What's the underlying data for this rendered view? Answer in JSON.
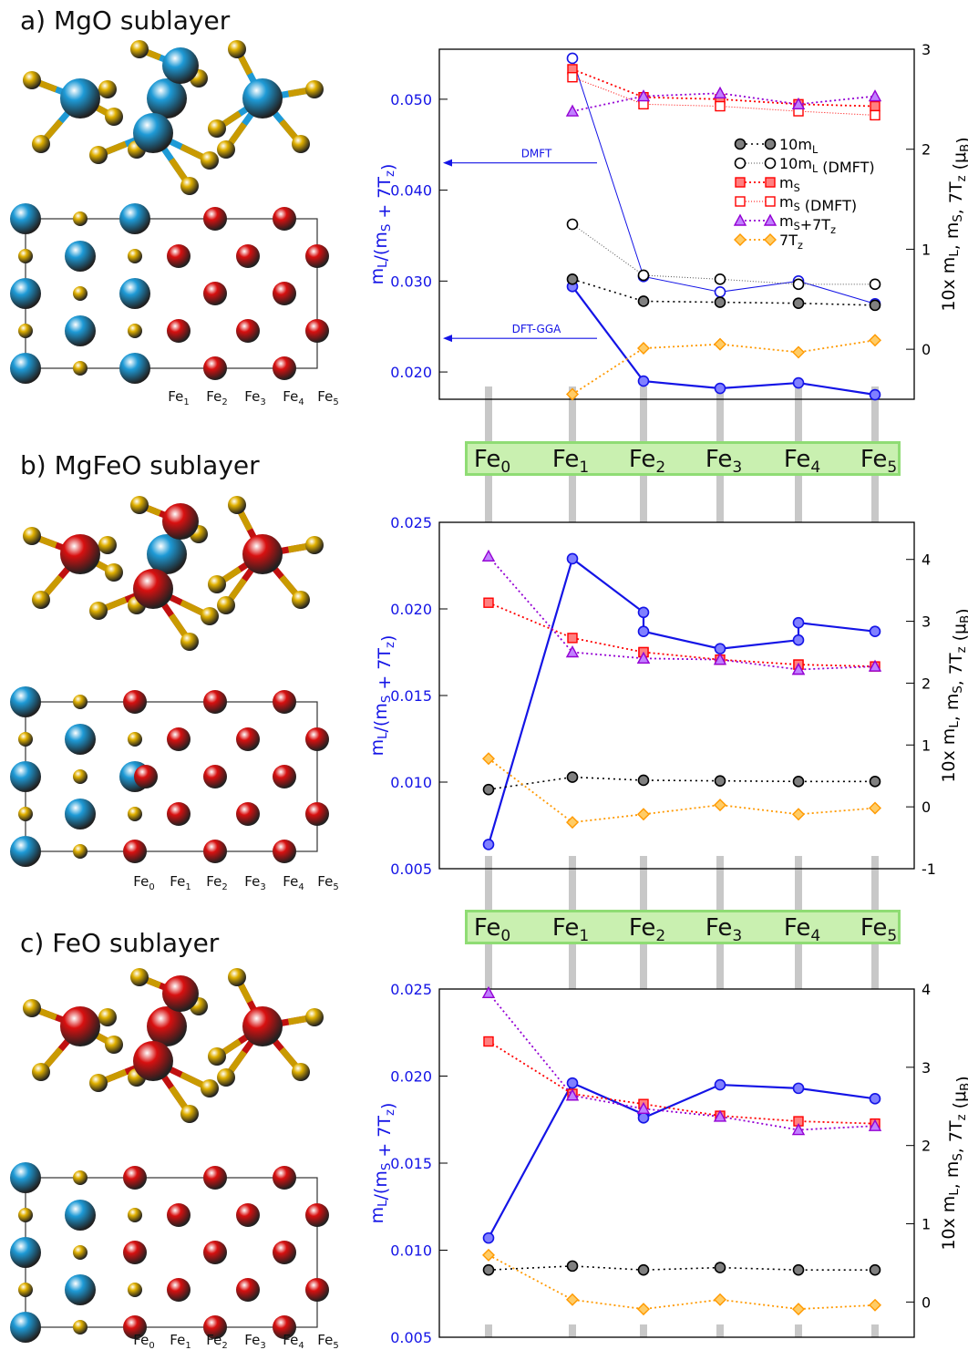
{
  "panels": [
    {
      "label": "a) MgO sublayer"
    },
    {
      "label": "b) MgFeO sublayer"
    },
    {
      "label": "c) FeO sublayer"
    }
  ],
  "structure_labels": {
    "a": [
      "Fe1",
      "Fe2",
      "Fe3",
      "Fe4",
      "Fe5"
    ],
    "b": [
      "Fe0",
      "Fe1",
      "Fe2",
      "Fe3",
      "Fe4",
      "Fe5"
    ],
    "c": [
      "Fe0",
      "Fe1",
      "Fe2",
      "Fe3",
      "Fe4",
      "Fe5"
    ]
  },
  "banners": [
    {
      "labels": [
        "Fe0",
        "Fe1",
        "Fe2",
        "Fe3",
        "Fe4",
        "Fe5"
      ]
    },
    {
      "labels": [
        "Fe0",
        "Fe1",
        "Fe2",
        "Fe3",
        "Fe4",
        "Fe5"
      ]
    }
  ],
  "colors": {
    "ratio": "#1414e6",
    "ratio_fill": "#8080ff",
    "mL": "#000000",
    "mL_fill": "#808080",
    "mS": "#ff0000",
    "mS_fill": "#ff8080",
    "mS7Tz": "#9400d3",
    "mS7Tz_fill": "#c080ff",
    "Tz": "#ff9900",
    "Tz_fill": "#ffcc66",
    "atom_O": "#e0b000",
    "atom_Mg": "#1e9ad6",
    "atom_Fe": "#d81010",
    "banner": "#c9f0b0"
  },
  "chart_data": [
    {
      "type": "line",
      "panel": "a",
      "ylabel_left": "mL/(mS + 7Tz)",
      "ylabel_right": "10x mL, mS, 7Tz (μB)",
      "ylim_left": [
        0.017,
        0.0555
      ],
      "ylim_right": [
        -0.5,
        3.0
      ],
      "yticks_left": [
        "0.020",
        "0.030",
        "0.040",
        "0.050"
      ],
      "yticks_left_values": [
        0.02,
        0.03,
        0.04,
        0.05
      ],
      "yticks_right": [
        "0",
        "1",
        "2",
        "3"
      ],
      "yticks_right_values": [
        0,
        1,
        2,
        3
      ],
      "x_positions": [
        "Fe1",
        "Fe2",
        "Fe3",
        "Fe4",
        "Fe5"
      ],
      "annotations": [
        "DMFT",
        "DFT-GGA"
      ],
      "annotation_values": [
        0.043,
        0.0237
      ],
      "legend": [
        "10mL",
        "10mL (DMFT)",
        "mS",
        "mS (DMFT)",
        "mS+7Tz",
        "7Tz"
      ],
      "series": [
        {
          "name": "ratio",
          "axis": "left",
          "kind": "solid-filled",
          "x": [
            1,
            2,
            3,
            4,
            5
          ],
          "values": [
            0.0294,
            0.019,
            0.0182,
            0.0188,
            0.0175
          ]
        },
        {
          "name": "ratio (DMFT)",
          "axis": "left",
          "kind": "solid-open",
          "x": [
            1,
            2,
            3,
            4,
            5
          ],
          "values": [
            0.0545,
            0.0305,
            0.0288,
            0.03,
            0.0275
          ]
        },
        {
          "name": "10mL",
          "axis": "right",
          "kind": "mL",
          "x": [
            1,
            2,
            3,
            4,
            5
          ],
          "values": [
            0.7,
            0.48,
            0.47,
            0.46,
            0.44
          ]
        },
        {
          "name": "10mL (DMFT)",
          "axis": "right",
          "kind": "mL-open",
          "x": [
            1,
            2,
            3,
            4,
            5
          ],
          "values": [
            1.25,
            0.74,
            0.7,
            0.65,
            0.65
          ]
        },
        {
          "name": "mS",
          "axis": "right",
          "kind": "mS",
          "x": [
            1,
            2,
            3,
            4,
            5
          ],
          "values": [
            2.8,
            2.52,
            2.5,
            2.45,
            2.43
          ]
        },
        {
          "name": "mS (DMFT)",
          "axis": "right",
          "kind": "mS-open",
          "x": [
            1,
            2,
            3,
            4,
            5
          ],
          "values": [
            2.72,
            2.45,
            2.43,
            2.38,
            2.34
          ]
        },
        {
          "name": "mS+7Tz",
          "axis": "right",
          "kind": "mS7Tz",
          "x": [
            1,
            2,
            3,
            4,
            5
          ],
          "values": [
            2.38,
            2.53,
            2.56,
            2.45,
            2.53
          ]
        },
        {
          "name": "7Tz",
          "axis": "right",
          "kind": "Tz",
          "x": [
            1,
            2,
            3,
            4,
            5
          ],
          "values": [
            -0.45,
            0.01,
            0.05,
            -0.03,
            0.09
          ]
        }
      ]
    },
    {
      "type": "line",
      "panel": "b",
      "ylabel_left": "mL/(mS + 7Tz)",
      "ylabel_right": "10x mL, mS, 7Tz (μB)",
      "ylim_left": [
        0.005,
        0.025
      ],
      "ylim_right": [
        -1,
        4.6
      ],
      "yticks_left": [
        "0.005",
        "0.010",
        "0.015",
        "0.020",
        "0.025"
      ],
      "yticks_left_values": [
        0.005,
        0.01,
        0.015,
        0.02,
        0.025
      ],
      "yticks_right": [
        "-1",
        "0",
        "1",
        "2",
        "3",
        "4"
      ],
      "yticks_right_values": [
        -1,
        0,
        1,
        2,
        3,
        4
      ],
      "x_positions": [
        "Fe0",
        "Fe1",
        "Fe2",
        "Fe3",
        "Fe4",
        "Fe5"
      ],
      "series": [
        {
          "name": "ratio",
          "axis": "left",
          "kind": "solid-filled",
          "x": [
            0,
            1,
            2,
            2,
            3,
            4,
            4,
            5
          ],
          "values": [
            0.0064,
            0.0229,
            0.0198,
            0.0187,
            0.0177,
            0.0182,
            0.0192,
            0.0187
          ]
        },
        {
          "name": "10mL",
          "axis": "right",
          "kind": "mL",
          "x": [
            0,
            1,
            2,
            3,
            4,
            5
          ],
          "values": [
            0.28,
            0.48,
            0.43,
            0.42,
            0.41,
            0.41
          ]
        },
        {
          "name": "mS",
          "axis": "right",
          "kind": "mS",
          "x": [
            0,
            1,
            2,
            2,
            3,
            4,
            4,
            5
          ],
          "values": [
            3.3,
            2.73,
            2.5,
            2.5,
            2.38,
            2.3,
            2.3,
            2.27
          ]
        },
        {
          "name": "mS+7Tz",
          "axis": "right",
          "kind": "mS7Tz",
          "x": [
            0,
            1,
            2,
            2,
            3,
            4,
            4,
            5
          ],
          "values": [
            4.05,
            2.5,
            2.4,
            2.4,
            2.38,
            2.22,
            2.22,
            2.27
          ]
        },
        {
          "name": "7Tz",
          "axis": "right",
          "kind": "Tz",
          "x": [
            0,
            1,
            2,
            3,
            4,
            5
          ],
          "values": [
            0.78,
            -0.25,
            -0.12,
            0.03,
            -0.12,
            -0.02
          ]
        }
      ]
    },
    {
      "type": "line",
      "panel": "c",
      "ylabel_left": "mL/(mS + 7Tz)",
      "ylabel_right": "10x mL, mS, 7Tz (μB)",
      "ylim_left": [
        0.005,
        0.025
      ],
      "ylim_right": [
        -0.45,
        4.0
      ],
      "yticks_left": [
        "0.005",
        "0.010",
        "0.015",
        "0.020",
        "0.025"
      ],
      "yticks_left_values": [
        0.005,
        0.01,
        0.015,
        0.02,
        0.025
      ],
      "yticks_right": [
        "0",
        "1",
        "2",
        "3",
        "4"
      ],
      "yticks_right_values": [
        0,
        1,
        2,
        3,
        4
      ],
      "x_positions": [
        "Fe0",
        "Fe1",
        "Fe2",
        "Fe3",
        "Fe4",
        "Fe5"
      ],
      "series": [
        {
          "name": "ratio",
          "axis": "left",
          "kind": "solid-filled",
          "x": [
            0,
            1,
            2,
            2,
            3,
            4,
            5
          ],
          "values": [
            0.0107,
            0.0196,
            0.0178,
            0.0176,
            0.0195,
            0.0193,
            0.0187
          ]
        },
        {
          "name": "10mL",
          "axis": "right",
          "kind": "mL",
          "x": [
            0,
            1,
            2,
            3,
            4,
            5
          ],
          "values": [
            0.41,
            0.46,
            0.41,
            0.44,
            0.41,
            0.41
          ]
        },
        {
          "name": "mS",
          "axis": "right",
          "kind": "mS",
          "x": [
            0,
            1,
            2,
            3,
            4,
            5
          ],
          "values": [
            3.33,
            2.66,
            2.53,
            2.38,
            2.31,
            2.28
          ]
        },
        {
          "name": "mS+7Tz",
          "axis": "right",
          "kind": "mS7Tz",
          "x": [
            0,
            1,
            2,
            3,
            4,
            5
          ],
          "values": [
            3.95,
            2.64,
            2.47,
            2.37,
            2.2,
            2.25
          ]
        },
        {
          "name": "7Tz",
          "axis": "right",
          "kind": "Tz",
          "x": [
            0,
            1,
            2,
            3,
            4,
            5
          ],
          "values": [
            0.6,
            0.03,
            -0.09,
            0.03,
            -0.09,
            -0.04
          ]
        }
      ]
    }
  ]
}
